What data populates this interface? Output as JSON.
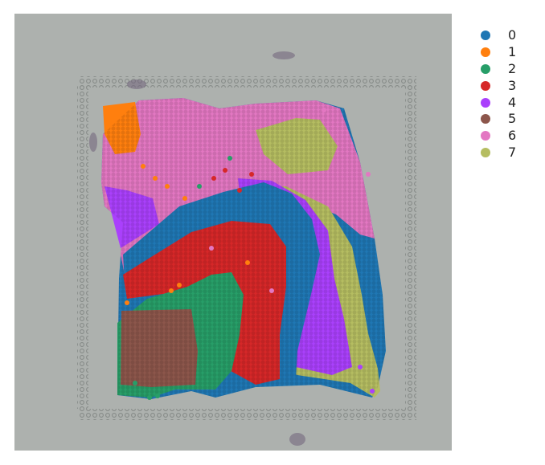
{
  "figure": {
    "background_color": "#adb1ae",
    "fiducial_color": "#8c918e"
  },
  "legend": {
    "items": [
      {
        "label": "0",
        "color": "#1f77b4"
      },
      {
        "label": "1",
        "color": "#ff7f0e"
      },
      {
        "label": "2",
        "color": "#279e68"
      },
      {
        "label": "3",
        "color": "#d62728"
      },
      {
        "label": "4",
        "color": "#aa40fc"
      },
      {
        "label": "5",
        "color": "#8c564b"
      },
      {
        "label": "6",
        "color": "#e377c2"
      },
      {
        "label": "7",
        "color": "#b5bd61"
      }
    ]
  }
}
